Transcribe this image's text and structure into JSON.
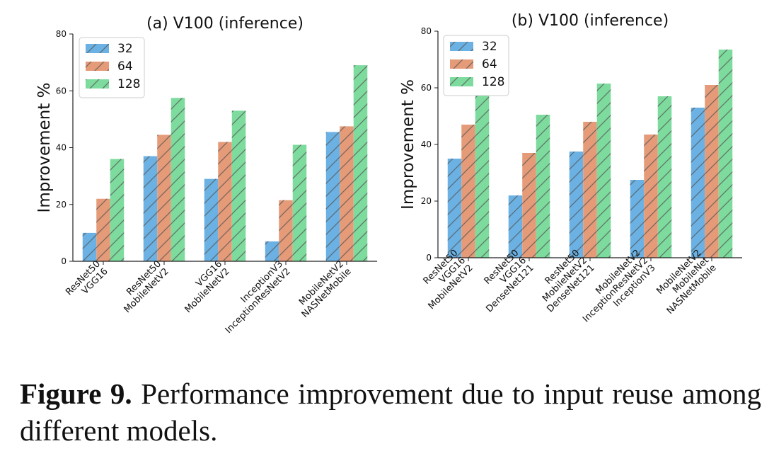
{
  "chart_data": [
    {
      "type": "bar",
      "title": "(a) V100 (inference)",
      "xlabel": "",
      "ylabel": "Improvement %",
      "ylim": [
        0,
        80
      ],
      "yticks": [
        0,
        20,
        40,
        60,
        80
      ],
      "grid": false,
      "legend_position": "top-left",
      "categories": [
        [
          "ResNet50",
          "VGG16"
        ],
        [
          "ResNet50",
          "MobileNetV2"
        ],
        [
          "VGG16",
          "MobileNetV2"
        ],
        [
          "InceptionV3",
          "InceptionResNetV2"
        ],
        [
          "MobileNetV2",
          "NASNetMobile"
        ]
      ],
      "series": [
        {
          "name": "32",
          "color": "#6bb1e3",
          "values": [
            10,
            37,
            29,
            7,
            45.5
          ]
        },
        {
          "name": "64",
          "color": "#e59a78",
          "values": [
            22,
            44.5,
            42,
            21.5,
            47.5
          ]
        },
        {
          "name": "128",
          "color": "#7ddb9d",
          "values": [
            36,
            57.5,
            53,
            41,
            69
          ]
        }
      ]
    },
    {
      "type": "bar",
      "title": "(b) V100 (inference)",
      "xlabel": "",
      "ylabel": "Improvement %",
      "ylim": [
        0,
        80
      ],
      "yticks": [
        0,
        20,
        40,
        60,
        80
      ],
      "grid": false,
      "legend_position": "top-left",
      "categories": [
        [
          "ResNet50",
          "VGG16",
          "MobileNetV2"
        ],
        [
          "ResNet50",
          "VGG16",
          "DenseNet121"
        ],
        [
          "ResNet50",
          "MobileNetV2",
          "DenseNet121"
        ],
        [
          "MobileNetV2",
          "InceptionResNetV2",
          "InceptionV3"
        ],
        [
          "MobileNetV2",
          "MobileNet",
          "NASNetMobile"
        ]
      ],
      "series": [
        {
          "name": "32",
          "color": "#6bb1e3",
          "values": [
            35,
            22,
            37.5,
            27.5,
            53
          ]
        },
        {
          "name": "64",
          "color": "#e59a78",
          "values": [
            47,
            37,
            48,
            43.5,
            61
          ]
        },
        {
          "name": "128",
          "color": "#7ddb9d",
          "values": [
            57.5,
            50.5,
            61.5,
            57,
            73.5
          ]
        }
      ]
    }
  ],
  "caption": {
    "label": "Figure 9.",
    "text": "Performance improvement due to input reuse among different models."
  }
}
